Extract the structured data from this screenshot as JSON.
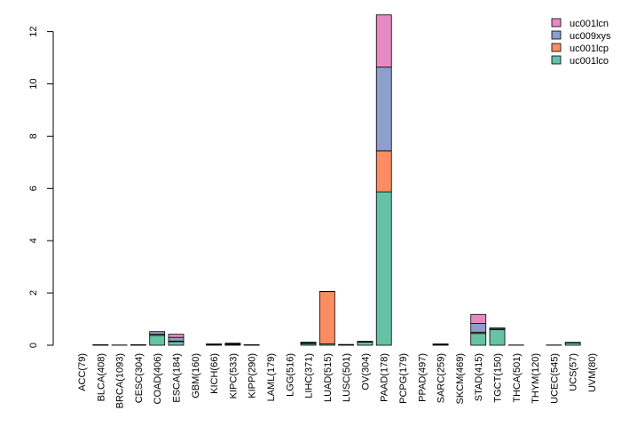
{
  "chart_data": {
    "type": "bar",
    "stacked": true,
    "title": "",
    "xlabel": "",
    "ylabel": "",
    "ylim": [
      0,
      12.7
    ],
    "yticks": [
      0,
      2,
      4,
      6,
      8,
      10,
      12
    ],
    "grid": false,
    "legend_position": "top-right",
    "categories": [
      "ACC(79)",
      "BLCA(408)",
      "BRCA(1093)",
      "CESC(304)",
      "COAD(406)",
      "ESCA(184)",
      "GBM(160)",
      "KICH(66)",
      "KIPC(533)",
      "KIPP(290)",
      "LAML(179)",
      "LGG(516)",
      "LIHC(371)",
      "LUAD(515)",
      "LUSC(501)",
      "OV(304)",
      "PAAD(178)",
      "PCPG(179)",
      "PPAD(497)",
      "SARC(259)",
      "SKCM(469)",
      "STAD(415)",
      "TGCT(150)",
      "THCA(501)",
      "THYM(120)",
      "UCEC(545)",
      "UCS(57)",
      "UVM(80)"
    ],
    "series": [
      {
        "name": "uc001lco",
        "color": "#66c2a5",
        "values": [
          0.0,
          0.01,
          0.01,
          0.01,
          0.38,
          0.14,
          0.0,
          0.02,
          0.02,
          0.01,
          0.0,
          0.0,
          0.06,
          0.05,
          0.02,
          0.12,
          5.87,
          0.0,
          0.0,
          0.02,
          0.0,
          0.45,
          0.6,
          0.01,
          0.0,
          0.01,
          0.09,
          0.0
        ]
      },
      {
        "name": "uc001lcp",
        "color": "#fc8d62",
        "values": [
          0.0,
          0.0,
          0.0,
          0.0,
          0.04,
          0.02,
          0.0,
          0.01,
          0.01,
          0.0,
          0.0,
          0.0,
          0.02,
          2.0,
          0.0,
          0.01,
          1.57,
          0.0,
          0.0,
          0.01,
          0.0,
          0.05,
          0.02,
          0.0,
          0.0,
          0.0,
          0.01,
          0.0
        ]
      },
      {
        "name": "uc009xys",
        "color": "#8da0cb",
        "values": [
          0.0,
          0.01,
          0.0,
          0.01,
          0.1,
          0.14,
          0.0,
          0.02,
          0.02,
          0.01,
          0.0,
          0.0,
          0.04,
          0.01,
          0.01,
          0.02,
          3.2,
          0.0,
          0.0,
          0.02,
          0.0,
          0.33,
          0.05,
          0.0,
          0.0,
          0.0,
          0.01,
          0.0
        ]
      },
      {
        "name": "uc001lcn",
        "color": "#e78ac3",
        "values": [
          0.0,
          0.0,
          0.0,
          0.0,
          0.0,
          0.12,
          0.0,
          0.0,
          0.03,
          0.0,
          0.0,
          0.0,
          0.0,
          0.0,
          0.0,
          0.0,
          2.0,
          0.0,
          0.0,
          0.0,
          0.0,
          0.35,
          0.0,
          0.0,
          0.0,
          0.0,
          0.0,
          0.0
        ]
      }
    ]
  }
}
